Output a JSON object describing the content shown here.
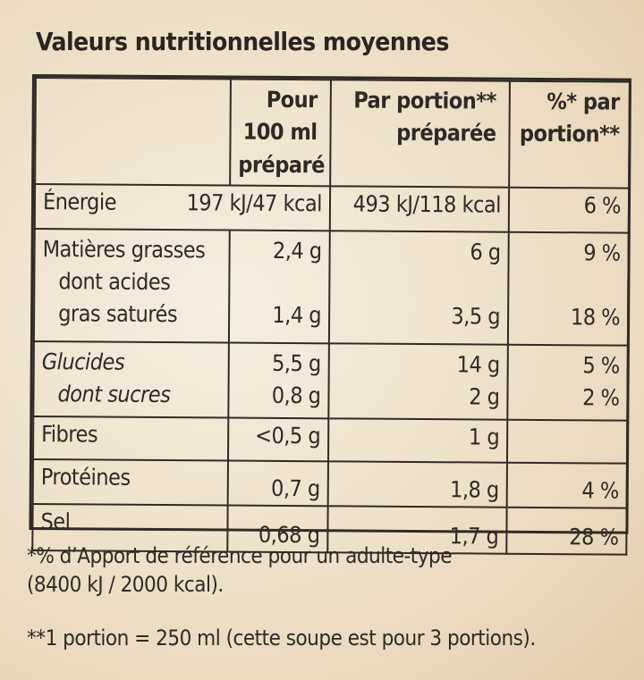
{
  "title": "Valeurs nutritionnelles moyennes",
  "table": {
    "headers": {
      "col1": "Pour 100 ml préparé",
      "col2": "Par portion** préparée",
      "col3": "%* par portion**"
    },
    "energy": {
      "label": "Énergie",
      "per100": "197 kJ/47 kcal",
      "portion": "493 kJ/118 kcal",
      "percent": "6 %"
    },
    "fat": {
      "label": "Matières grasses",
      "per100": "2,4 g",
      "portion": "6 g",
      "percent": "9 %",
      "sub_label_1": "dont acides",
      "sub_label_2": "gras saturés",
      "sub_per100": "1,4 g",
      "sub_portion": "3,5 g",
      "sub_percent": "18 %"
    },
    "carbs": {
      "label": "Glucides",
      "per100": "5,5 g",
      "portion": "14 g",
      "percent": "5 %",
      "sub_label": "dont sucres",
      "sub_per100": "0,8 g",
      "sub_portion": "2 g",
      "sub_percent": "2 %"
    },
    "fibre": {
      "label": "Fibres",
      "per100": "<0,5 g",
      "portion": "1 g",
      "percent": ""
    },
    "protein": {
      "label": "Protéines",
      "per100": "0,7 g",
      "portion": "1,8 g",
      "percent": "4 %"
    },
    "salt": {
      "label": "Sel",
      "per100": "0,68 g",
      "portion": "1,7 g",
      "percent": "28 %"
    }
  },
  "footnotes": {
    "fn1_line1": "*% d’Apport de référence pour un adulte-type",
    "fn1_line2": "(8400 kJ / 2000 kcal).",
    "fn2": "**1 portion = 250 ml (cette soupe est pour 3 portions)."
  }
}
